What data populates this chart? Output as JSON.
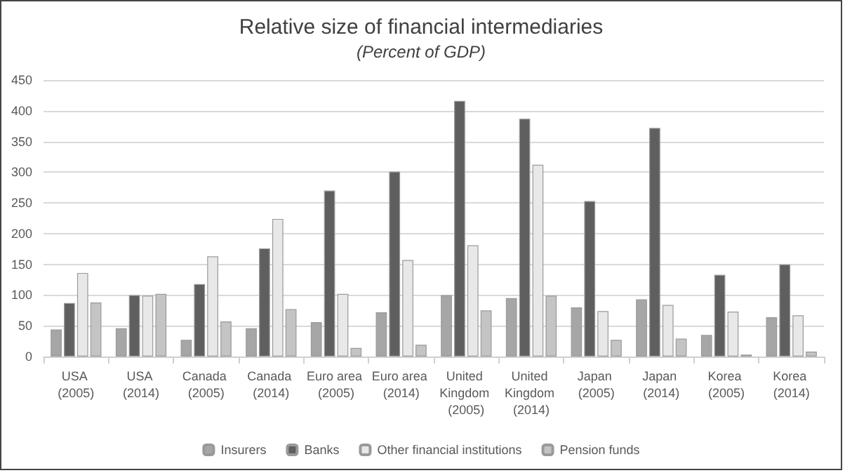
{
  "chart_data": {
    "type": "bar",
    "title": "Relative size of financial intermediaries",
    "subtitle": "(Percent of GDP)",
    "categories": [
      "USA (2005)",
      "USA (2014)",
      "Canada (2005)",
      "Canada (2014)",
      "Euro area (2005)",
      "Euro area (2014)",
      "United Kingdom (2005)",
      "United Kingdom (2014)",
      "Japan (2005)",
      "Japan (2014)",
      "Korea (2005)",
      "Korea (2014)"
    ],
    "series": [
      {
        "name": "Insurers",
        "color": "#a6a6a6",
        "values": [
          44,
          46,
          27,
          46,
          56,
          72,
          100,
          95,
          80,
          93,
          35,
          64
        ]
      },
      {
        "name": "Banks",
        "color": "#5f5f5f",
        "values": [
          87,
          100,
          118,
          176,
          270,
          301,
          416,
          387,
          253,
          372,
          133,
          150
        ]
      },
      {
        "name": "Other financial institutions",
        "color": "#e8e8e8",
        "values": [
          136,
          99,
          163,
          224,
          102,
          157,
          181,
          312,
          74,
          84,
          73,
          67
        ]
      },
      {
        "name": "Pension funds",
        "color": "#c4c4c4",
        "values": [
          88,
          102,
          57,
          77,
          14,
          19,
          75,
          99,
          27,
          29,
          3,
          8
        ]
      }
    ],
    "ylim": [
      0,
      450
    ],
    "yticks": [
      0,
      50,
      100,
      150,
      200,
      250,
      300,
      350,
      400,
      450
    ],
    "grid": "y",
    "legend": "bottom"
  }
}
